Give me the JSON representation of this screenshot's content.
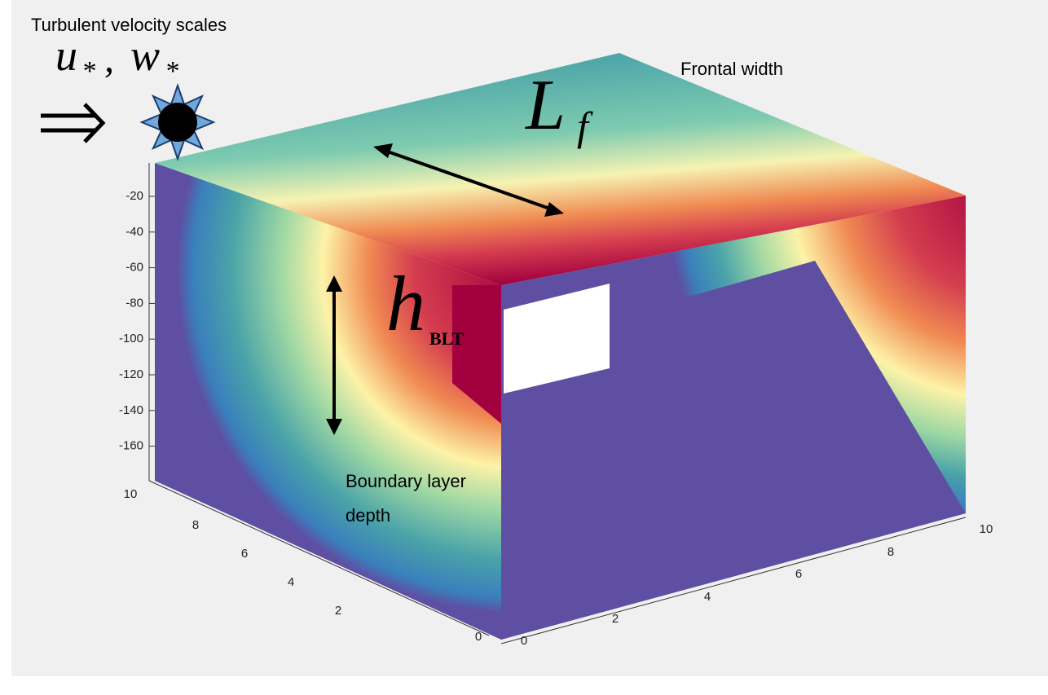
{
  "labels": {
    "velocity_title": "Turbulent velocity scales",
    "u": "u",
    "w": "w",
    "star": "*",
    "comma": ",",
    "frontal_width": "Frontal width",
    "L": "L",
    "f": "f",
    "h": "h",
    "blt": "BLT",
    "boundary_line1": "Boundary layer",
    "boundary_line2": "depth"
  },
  "axes": {
    "z_ticks": [
      -20,
      -40,
      -60,
      -80,
      -100,
      -120,
      -140,
      -160
    ],
    "left_ticks": [
      10,
      8,
      6,
      4,
      2,
      0
    ],
    "right_ticks": [
      0,
      2,
      4,
      6,
      8,
      10
    ]
  }
}
